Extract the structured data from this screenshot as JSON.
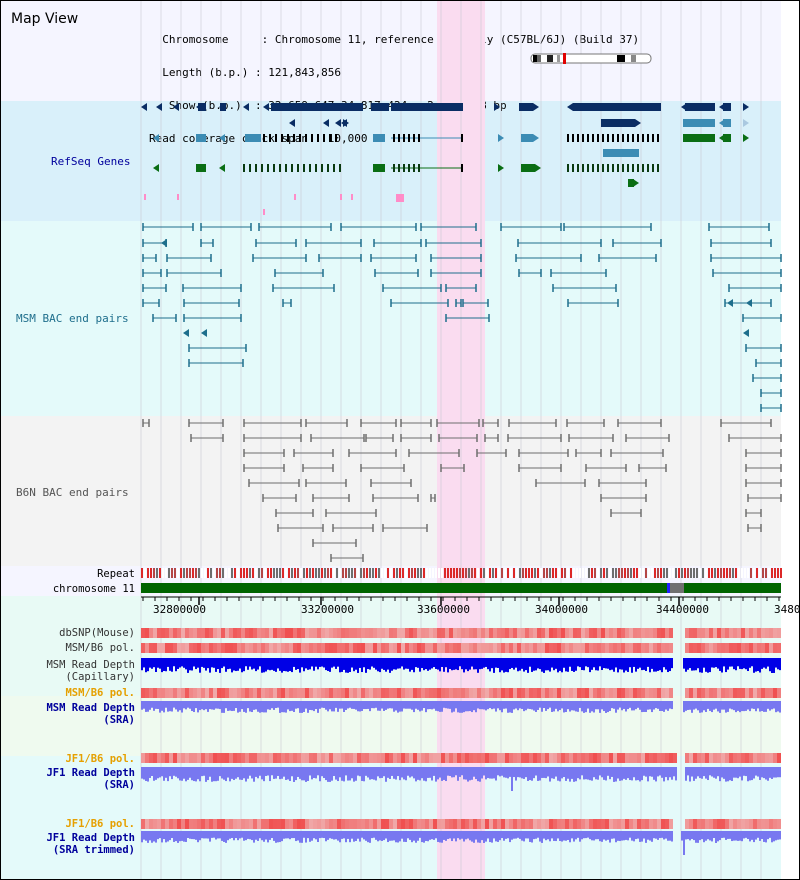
{
  "view_title": "Map View",
  "info": {
    "lines": [
      "  Chromosome     : Chromosome 11, reference assembly (C57BL/6J) (Build 37)",
      "  Length (b.p.) : 121,843,856",
      "   Show (b.p.)  : 32,659,647-34,817,424 : 2,157,778 bp",
      "Read coverage check span : 10,000"
    ]
  },
  "sections": {
    "refseq": "RefSeq Genes",
    "msm_bac": "MSM BAC end pairs",
    "b6n_bac": "B6N BAC end pairs"
  },
  "track_labels": {
    "repeat": "Repeat",
    "chromosome": "chromosome 11",
    "dbsnp": "dbSNP(Mouse)",
    "msm_b6_pol": "MSM/B6 pol.",
    "msm_read_depth_cap_1": "MSM Read Depth",
    "msm_read_depth_cap_2": "(Capillary)",
    "msm_b6_pol_sra": "MSM/B6 pol.",
    "msm_read_depth_sra_1": "MSM Read Depth",
    "msm_read_depth_sra_2": "(SRA)",
    "jf1_b6_pol": "JF1/B6 pol.",
    "jf1_read_depth_1": "JF1 Read Depth",
    "jf1_read_depth_2": "(SRA)",
    "jf1_b6_pol_2": "JF1/B6 pol.",
    "jf1_trim_1": "JF1 Read Depth",
    "jf1_trim_2": "(SRA trimmed)"
  },
  "ruler": {
    "ticks": [
      "32800000",
      "33200000",
      "33600000",
      "34000000",
      "34400000",
      "3480"
    ]
  },
  "colors": {
    "refseq_bg": "#d9f0fa",
    "msm_bg": "#e6fafa",
    "b6n_bg": "#f5f5f5",
    "highlight": "#fadcf0",
    "msm_line": "#1e6e8c",
    "gene_navy": "#0a2d64",
    "gene_teal": "#3c8cb4",
    "gene_green": "#0a6e14",
    "depth_blue": "#0000e6",
    "depth_light": "#7878f0",
    "chrom_green": "#006400",
    "label_navy": "#00009c",
    "label_orange": "#e6a000"
  }
}
